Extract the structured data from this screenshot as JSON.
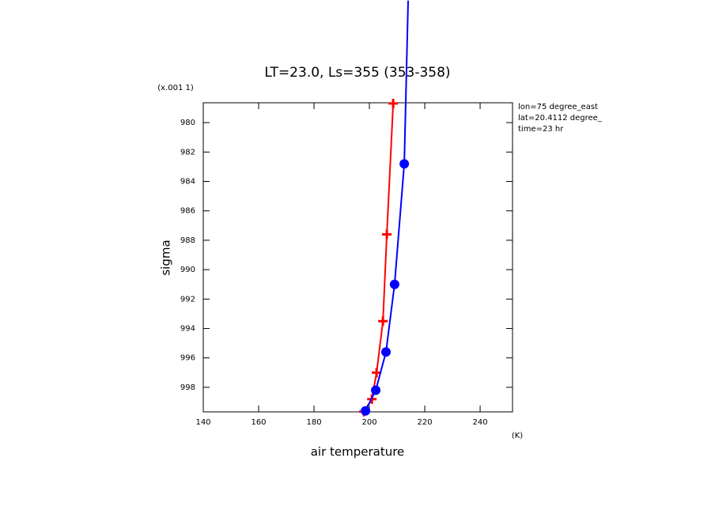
{
  "chart_data": {
    "type": "line",
    "title": "LT=23.0, Ls=355 (353-358)",
    "x_label": "air temperature",
    "y_label": "sigma",
    "x_unit": "(K)",
    "y_scale_note": "(x.001 1)",
    "annotations": [
      "lon=75 degree_east",
      "lat=20.4112 degree_",
      "time=23 hr"
    ],
    "xlim": [
      140,
      251.7
    ],
    "xticks": [
      140,
      160,
      180,
      200,
      220,
      240
    ],
    "ylim": [
      978.65,
      999.67
    ],
    "yticks": [
      980,
      982,
      984,
      986,
      988,
      990,
      992,
      994,
      996,
      998
    ],
    "y_reversed": true,
    "series": [
      {
        "color": "#ff0000",
        "marker": "plus",
        "x": [
          208.6,
          206.3,
          204.9,
          202.6,
          200.9,
          198.0
        ],
        "values": [
          978.7,
          987.6,
          993.5,
          997.0,
          998.8,
          999.65
        ]
      },
      {
        "color": "#0000ff",
        "marker": "circle",
        "x": [
          214.0,
          212.6,
          209.1,
          206.0,
          202.3,
          198.6
        ],
        "values": [
          971.7,
          982.8,
          991.0,
          995.6,
          998.2,
          999.6
        ]
      }
    ]
  }
}
